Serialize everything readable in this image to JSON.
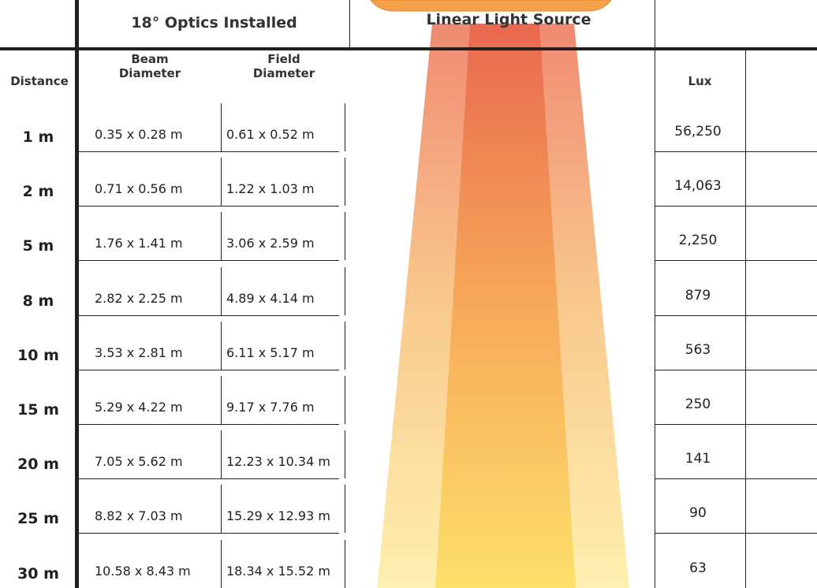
{
  "header": {
    "optics_title": "18° Optics Installed",
    "source_title": "Linear Light Source"
  },
  "columns": [
    "Distance",
    "Beam Diameter",
    "Field Diameter",
    "Lux"
  ],
  "rows": [
    [
      "1 m",
      "0.35 x 0.28 m",
      "0.61 x 0.52 m",
      "56,250"
    ],
    [
      "2 m",
      "0.71 x 0.56 m",
      "1.22 x 1.03 m",
      "14,063"
    ],
    [
      "5 m",
      "1.76 x 1.41 m",
      "3.06 x 2.59 m",
      "2,250"
    ],
    [
      "8 m",
      "2.82 x 2.25 m",
      "4.89 x 4.14 m",
      "879"
    ],
    [
      "10 m",
      "3.53 x 2.81 m",
      "6.11 x 5.17 m",
      "563"
    ],
    [
      "15 m",
      "5.29 x 4.22 m",
      "9.17 x 7.76 m",
      "250"
    ],
    [
      "20 m",
      "7.05 x 5.62 m",
      "12.23 x 10.34 m",
      "141"
    ],
    [
      "25 m",
      "8.82 x 7.03 m",
      "15.29 x 12.93 m",
      "90"
    ],
    [
      "30 m",
      "10.58 x 8.43 m",
      "18.34 x 15.52 m",
      "63"
    ]
  ]
}
